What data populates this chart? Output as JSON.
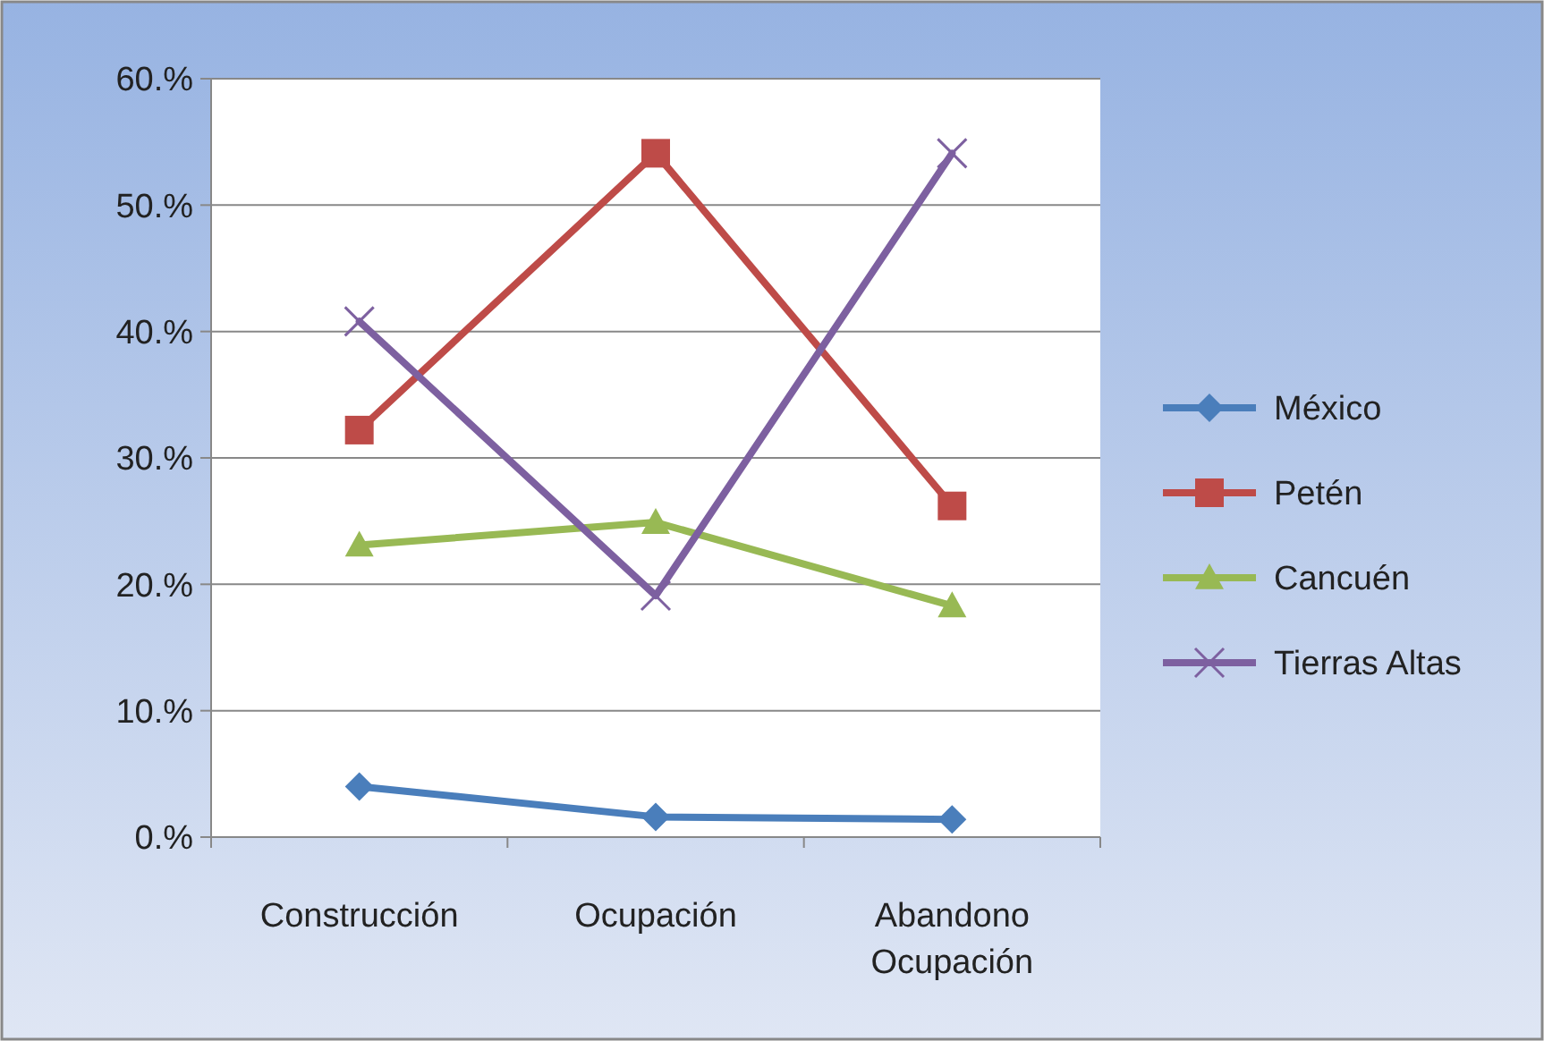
{
  "chart_data": {
    "type": "line",
    "categories": [
      "Construcción",
      "Ocupación",
      "Abandono Ocupación"
    ],
    "series": [
      {
        "name": "México",
        "color": "#4a7ebb",
        "marker": "diamond",
        "values": [
          4.0,
          1.6,
          1.4
        ]
      },
      {
        "name": "Petén",
        "color": "#be4b48",
        "marker": "square",
        "values": [
          32.2,
          54.1,
          26.2
        ]
      },
      {
        "name": "Cancuén",
        "color": "#98b954",
        "marker": "triangle",
        "values": [
          23.1,
          24.9,
          18.3
        ]
      },
      {
        "name": "Tierras Altas",
        "color": "#7d60a0",
        "marker": "cross",
        "values": [
          40.8,
          19.1,
          54.1
        ]
      }
    ],
    "ylim": [
      0,
      60
    ],
    "yticks": [
      {
        "value": 0,
        "label": "0.%"
      },
      {
        "value": 10,
        "label": "10.%"
      },
      {
        "value": 20,
        "label": "20.%"
      },
      {
        "value": 30,
        "label": "30.%"
      },
      {
        "value": 40,
        "label": "40.%"
      },
      {
        "value": 50,
        "label": "50.%"
      },
      {
        "value": 60,
        "label": "60.%"
      }
    ],
    "grid": "y",
    "legend": "right",
    "line_style": "solid"
  }
}
